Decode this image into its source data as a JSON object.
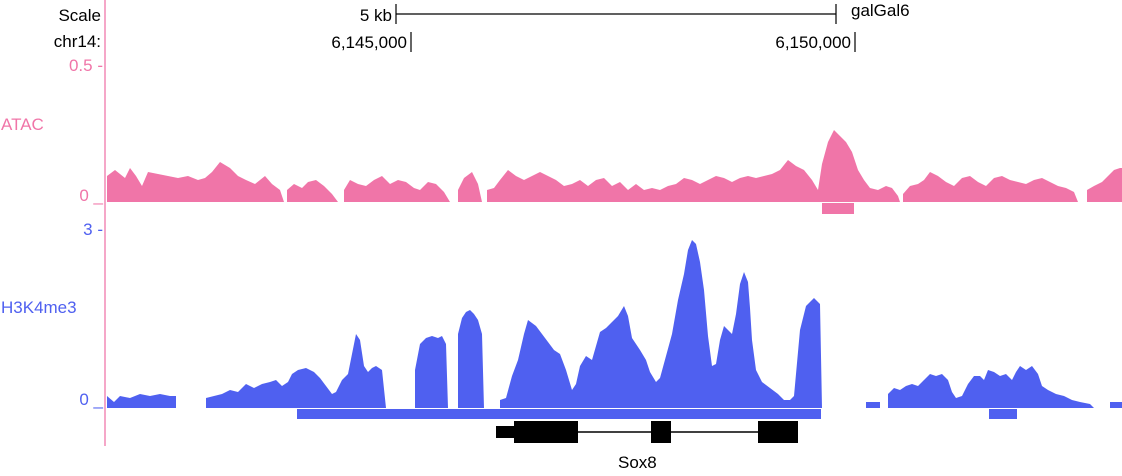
{
  "header": {
    "scale_label": "Scale",
    "chrom_label": "chr14:",
    "scale_bar_label": "5 kb",
    "assembly": "galGal6",
    "positions": [
      "6,145,000",
      "6,150,000"
    ]
  },
  "tracks": [
    {
      "name": "ATAC",
      "max_label": "0.5 -",
      "min_label": "0 _",
      "color": "#f075a8"
    },
    {
      "name": "H3K4me3",
      "max_label": "3 -",
      "min_label": "0 _",
      "color": "#4f60f0"
    }
  ],
  "gene": {
    "name": "Sox8"
  }
}
